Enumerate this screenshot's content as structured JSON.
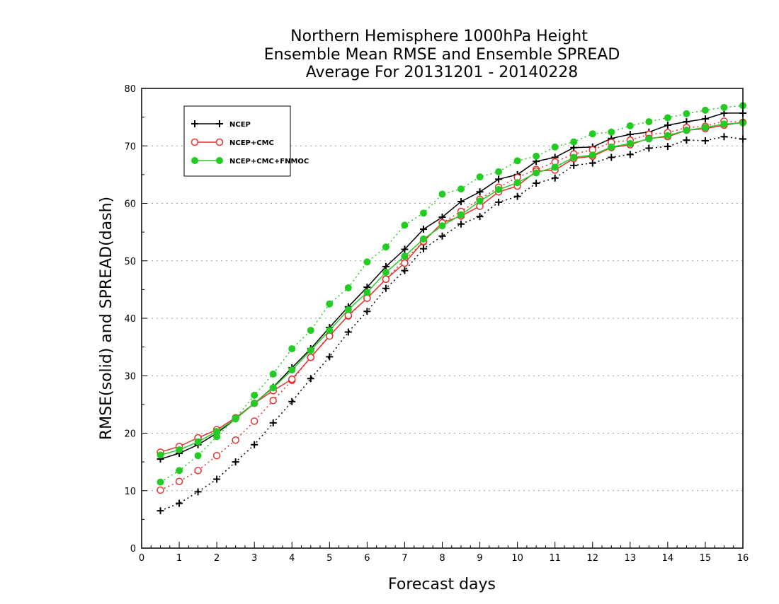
{
  "title_lines": [
    "Northern Hemisphere 1000hPa Height",
    "Ensemble Mean RMSE and Ensemble SPREAD",
    "Average For 20131201 - 20140228"
  ],
  "chart_data": {
    "type": "line",
    "xlabel": "Forecast days",
    "ylabel": "RMSE(solid) and SPREAD(dash)",
    "xlim": [
      0,
      16
    ],
    "ylim": [
      0,
      80
    ],
    "xticks": [
      0,
      1,
      2,
      3,
      4,
      5,
      6,
      7,
      8,
      9,
      10,
      11,
      12,
      13,
      14,
      15,
      16
    ],
    "yticks": [
      0,
      10,
      20,
      30,
      40,
      50,
      60,
      70,
      80
    ],
    "grid": "horizontal dotted",
    "legend_position": "top-left",
    "x": [
      0.5,
      1,
      1.5,
      2,
      2.5,
      3,
      3.5,
      4,
      4.5,
      5,
      5.5,
      6,
      6.5,
      7,
      7.5,
      8,
      8.5,
      9,
      9.5,
      10,
      10.5,
      11,
      11.5,
      12,
      12.5,
      13,
      13.5,
      14,
      14.5,
      15,
      15.5,
      16
    ],
    "series": [
      {
        "name": "NCEP",
        "color": "#000000",
        "marker": "plus",
        "rmse": [
          15.5,
          16.5,
          18.0,
          20.0,
          22.5,
          25.2,
          28.0,
          31.4,
          34.7,
          38.4,
          42.0,
          45.4,
          49.0,
          52.0,
          55.5,
          57.6,
          60.3,
          62.0,
          64.2,
          65.0,
          67.3,
          68.0,
          69.7,
          69.8,
          71.3,
          72.0,
          72.4,
          73.6,
          74.2,
          74.7,
          75.7,
          75.7
        ],
        "spread": [
          6.5,
          7.8,
          9.8,
          12.0,
          15.0,
          18.0,
          21.8,
          25.5,
          29.5,
          33.3,
          37.6,
          41.2,
          45.2,
          48.3,
          52.1,
          54.3,
          56.4,
          57.7,
          60.2,
          61.2,
          63.5,
          64.4,
          66.6,
          67.0,
          68.0,
          68.5,
          69.6,
          69.9,
          71.0,
          70.9,
          71.6,
          71.2
        ]
      },
      {
        "name": "NCEP+CMC",
        "color": "#e53030",
        "marker": "open-circle",
        "rmse": [
          16.7,
          17.7,
          19.2,
          20.6,
          22.7,
          25.2,
          27.4,
          29.4,
          33.2,
          36.9,
          40.5,
          43.5,
          46.8,
          49.6,
          53.4,
          56.6,
          57.8,
          59.5,
          62.0,
          63.0,
          65.6,
          65.8,
          67.8,
          68.2,
          69.7,
          70.2,
          71.3,
          71.6,
          72.7,
          73.0,
          73.6,
          74.1
        ],
        "spread": [
          10.1,
          11.6,
          13.5,
          16.1,
          18.8,
          22.1,
          25.7,
          29.2,
          33.2,
          37.0,
          40.4,
          43.5,
          46.8,
          50.2,
          53.3,
          56.6,
          58.6,
          60.7,
          62.8,
          64.5,
          65.9,
          67.2,
          68.6,
          69.3,
          70.6,
          71.0,
          72.0,
          72.3,
          73.2,
          73.4,
          74.3,
          74.1
        ]
      },
      {
        "name": "NCEP+CMC+FNMOC",
        "color": "#22cc22",
        "marker": "filled-circle",
        "rmse": [
          16.2,
          17.1,
          18.5,
          20.3,
          22.5,
          25.2,
          27.9,
          31.0,
          34.4,
          37.9,
          41.5,
          44.5,
          48.0,
          50.8,
          53.8,
          56.1,
          58.0,
          60.4,
          62.4,
          63.6,
          65.3,
          66.3,
          68.0,
          68.4,
          69.8,
          70.4,
          71.2,
          71.8,
          72.7,
          73.2,
          73.8,
          74.0
        ],
        "spread": [
          11.5,
          13.5,
          16.1,
          19.4,
          22.6,
          26.6,
          30.3,
          34.7,
          37.9,
          42.5,
          45.3,
          49.8,
          52.4,
          56.2,
          58.3,
          61.6,
          62.5,
          64.6,
          65.5,
          67.4,
          68.2,
          69.8,
          70.7,
          72.1,
          72.4,
          73.5,
          74.2,
          74.9,
          75.6,
          76.2,
          76.7,
          77.0
        ]
      }
    ]
  }
}
